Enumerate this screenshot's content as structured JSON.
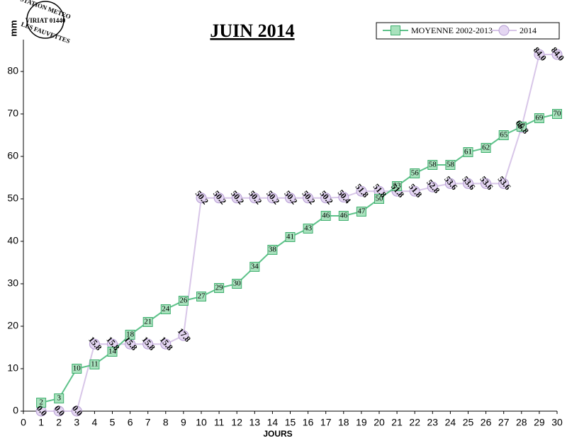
{
  "chart_data": {
    "type": "line",
    "title": "JUIN 2014",
    "y_label": "mm",
    "x_label": "JOURS",
    "annotations": [
      "STATION METEO",
      "VIRIAT 01440",
      "LES FAUVETTES"
    ],
    "x": [
      1,
      2,
      3,
      4,
      5,
      6,
      7,
      8,
      9,
      10,
      11,
      12,
      13,
      14,
      15,
      16,
      17,
      18,
      19,
      20,
      21,
      22,
      23,
      24,
      25,
      26,
      27,
      28,
      29,
      30
    ],
    "xlim": [
      0,
      30
    ],
    "xticks": [
      0,
      1,
      2,
      3,
      4,
      5,
      6,
      7,
      8,
      9,
      10,
      11,
      12,
      13,
      14,
      15,
      16,
      17,
      18,
      19,
      20,
      21,
      22,
      23,
      24,
      25,
      26,
      27,
      28,
      29,
      30
    ],
    "ylim": [
      0,
      87.5
    ],
    "yticks": [
      0,
      10,
      20,
      30,
      40,
      50,
      60,
      70,
      80
    ],
    "grid": false,
    "legend": "top-right",
    "series": [
      {
        "name": "MOYENNE 2002-2013",
        "color": "#5ec28a",
        "marker": "square",
        "values": [
          2,
          3,
          10,
          11,
          14,
          18,
          21,
          24,
          26,
          27,
          29,
          30,
          34,
          38,
          41,
          43,
          46,
          46,
          47,
          50,
          53,
          56,
          58,
          58,
          61,
          62,
          65,
          67,
          69,
          70
        ]
      },
      {
        "name": "2014",
        "color": "#d8c6e8",
        "marker": "circle",
        "values": [
          0,
          0,
          0,
          15.8,
          15.8,
          15.8,
          15.8,
          15.8,
          17.8,
          50.2,
          50.2,
          50.2,
          50.2,
          50.2,
          50.2,
          50.2,
          50.2,
          50.4,
          51.8,
          51.8,
          51.8,
          51.8,
          52.8,
          53.6,
          53.6,
          53.6,
          53.6,
          66.8,
          84,
          84
        ],
        "value_labels": [
          "0.0",
          "0.0",
          "0.0",
          "15.8",
          "15.8",
          "15.8",
          "15.8",
          "15.8",
          "17.8",
          "50.2",
          "50.2",
          "50.2",
          "50.2",
          "50.2",
          "50.2",
          "50.2",
          "50.2",
          "50.4",
          "51.8",
          "51.8",
          "51.8",
          "51.8",
          "52.8",
          "53.6",
          "53.6",
          "53.6",
          "53.6",
          "66.8",
          "84.0",
          "84.0"
        ]
      }
    ]
  }
}
